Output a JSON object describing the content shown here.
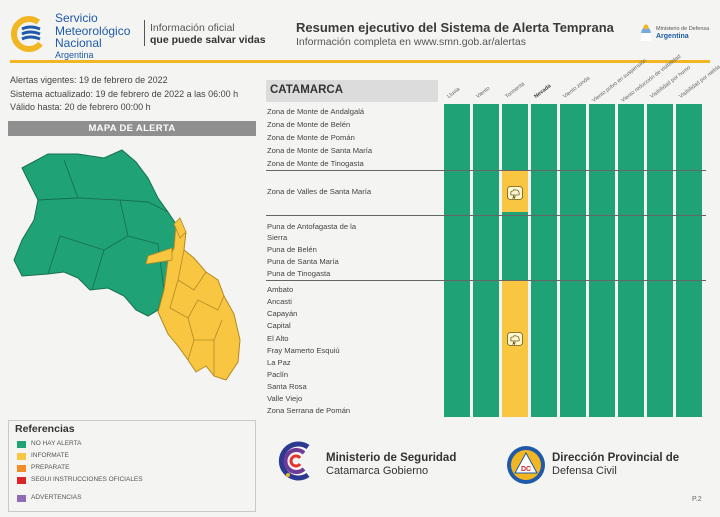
{
  "header": {
    "smn_line1": "Servicio",
    "smn_line2": "Meteorológico",
    "smn_line3": "Nacional",
    "smn_line4": "Argentina",
    "info_line1": "Información oficial",
    "info_line2": "que puede salvar vidas",
    "title": "Resumen ejecutivo del Sistema de Alerta Temprana",
    "subtitle": "Información completa en www.smn.gob.ar/alertas",
    "ministerio_line1": "Ministerio de Defensa",
    "ministerio_line2": "Argentina"
  },
  "meta": {
    "alertas": "Alertas vigentes: 19 de febrero de 2022",
    "sistema": "Sistema actualizado: 19 de febrero de 2022 a las 06:00 h",
    "valido": "Válido hasta: 20 de febrero 00:00 h"
  },
  "map": {
    "title": "MAPA DE ALERTA",
    "colors": {
      "green": "#1fa376",
      "yellow": "#f9c642"
    }
  },
  "references": {
    "title": "Referencias",
    "items": [
      {
        "label": "NO HAY ALERTA",
        "color": "#1fa376"
      },
      {
        "label": "INFORMATE",
        "color": "#f9c642"
      },
      {
        "label": "PREPARATE",
        "color": "#f28c28"
      },
      {
        "label": "SEGUI INSTRUCCIONES OFICIALES",
        "color": "#d9252a"
      },
      {
        "label": "ADVERTENCIAS",
        "color": "#8e6bb3"
      }
    ]
  },
  "table": {
    "province": "CATAMARCA",
    "columns": [
      "Lluvia",
      "Viento",
      "Tormenta",
      "Nevada",
      "Viento zonda",
      "Viento polvo en suspensión",
      "Viento reducción de visibilidad",
      "Visibilidad por humo",
      "Visibilidad por niebla"
    ],
    "yellow_column": "Tormenta",
    "groups": [
      {
        "zones": [
          "Zona de Monte de Andalgalá",
          "Zona de Monte de Belén",
          "Zona de Monte de Pomán",
          "Zona de Monte de Santa María",
          "Zona de Monte de Tinogasta"
        ]
      },
      {
        "zones": [
          "Zona de Valles de Santa María"
        ]
      },
      {
        "zones": [
          "Puna de Antofagasta de la",
          "Sierra",
          "Puna de Belén",
          "Puna de Santa María",
          "Puna de Tinogasta"
        ]
      },
      {
        "zones": [
          "Ambato",
          "Ancasti",
          "Capayán",
          "Capital",
          "El Alto",
          "Fray Mamerto Esquiú",
          "La Paz",
          "Paclín",
          "Santa Rosa",
          "Valle Viejo",
          "Zona Serrana de Pomán"
        ]
      }
    ],
    "icon": "storm-cloud-icon"
  },
  "footer": {
    "min_seg_line1": "Ministerio de Seguridad",
    "min_seg_line2": "Catamarca Gobierno",
    "dc_line1": "Dirección Provincial de",
    "dc_line2": "Defensa Civil",
    "page": "P.2"
  }
}
